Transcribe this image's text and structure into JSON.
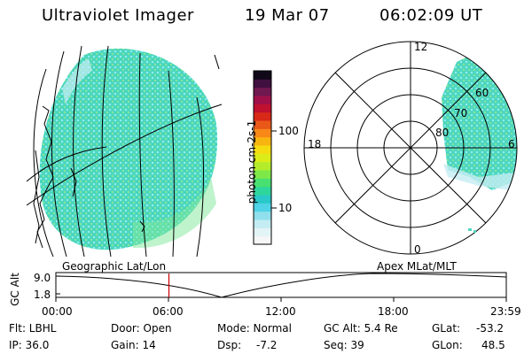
{
  "header": {
    "instrument": "Ultraviolet Imager",
    "date": "19 Mar 07",
    "time": "06:02:09 UT"
  },
  "colorbar": {
    "unit_label": "photon cm-2s-1",
    "ticks": [
      "100",
      "10"
    ],
    "colors": [
      "#f6f6f6",
      "#e3f4f6",
      "#c4ecf3",
      "#8fe0ec",
      "#4fd3e6",
      "#2ac8c8",
      "#2fd69c",
      "#48e070",
      "#7ee848",
      "#b4ec2c",
      "#dcec18",
      "#f4dc10",
      "#f8b410",
      "#f88818",
      "#e85818",
      "#d82818",
      "#c01030",
      "#a01048",
      "#701850",
      "#401040",
      "#100818"
    ]
  },
  "polar": {
    "lat_labels": [
      "60",
      "70",
      "80"
    ],
    "mlt_labels": [
      "12",
      "18",
      "6",
      "0"
    ]
  },
  "timeline": {
    "left_label": "Geographic Lat/Lon",
    "right_label": "Apex MLat/MLT",
    "y_axis_label": "GC Alt",
    "y_ticks": [
      "9.0",
      "1.8"
    ],
    "x_ticks": [
      "00:00",
      "06:00",
      "12:00",
      "18:00",
      "23:59"
    ],
    "current_time_fraction": 0.251,
    "marker_color": "#cc0000"
  },
  "info": {
    "flt_label": "Flt: LBHL",
    "ip_label": "IP: 36.0",
    "door_label": "Door: Open",
    "gain_label": "Gain: 14",
    "mode_label": "Mode: Normal",
    "dsp_label": "Dsp:",
    "dsp_value": "-7.2",
    "gcalt_label": "GC Alt: 5.4 Re",
    "seq_label": "Seq: 39",
    "glat_label": "GLat:",
    "glat_value": "-53.2",
    "glon_label": "GLon:",
    "glon_value": "48.5"
  }
}
